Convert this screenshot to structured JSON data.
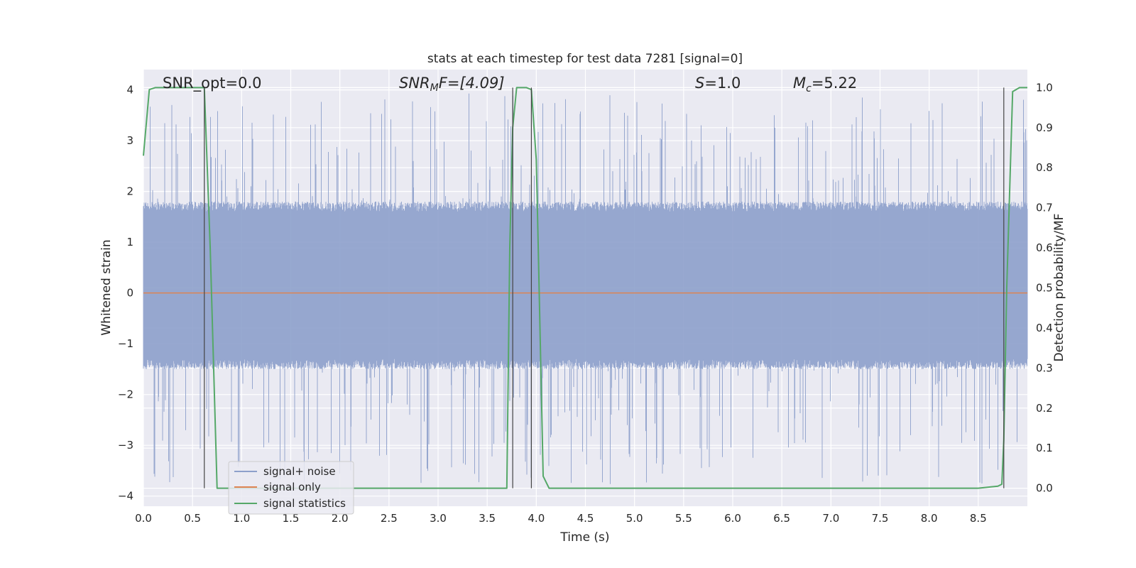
{
  "chart_data": {
    "type": "line",
    "title": "stats at each timestep for test data 7281 [signal=0]",
    "xlabel": "Time (s)",
    "ylabel": "Whitened strain",
    "ylabel_right": "Detection probability/MF",
    "xlim": [
      0.0,
      9.0
    ],
    "ylim": [
      -4.2,
      4.4
    ],
    "ylim_right": [
      -0.045,
      1.045
    ],
    "x_ticks": [
      0.0,
      0.5,
      1.0,
      1.5,
      2.0,
      2.5,
      3.0,
      3.5,
      4.0,
      4.5,
      5.0,
      5.5,
      6.0,
      6.5,
      7.0,
      7.5,
      8.0,
      8.5
    ],
    "x_tick_labels": [
      "0.0",
      "0.5",
      "1.0",
      "1.5",
      "2.0",
      "2.5",
      "3.0",
      "3.5",
      "4.0",
      "4.5",
      "5.0",
      "5.5",
      "6.0",
      "6.5",
      "7.0",
      "7.5",
      "8.0",
      "8.5"
    ],
    "y_ticks": [
      4,
      3,
      2,
      1,
      0,
      -1,
      -2,
      -3,
      -4
    ],
    "y_tick_labels": [
      "4",
      "3",
      "2",
      "1",
      "0",
      "−1",
      "−2",
      "−3",
      "−4"
    ],
    "y_right_ticks": [
      1.0,
      0.9,
      0.8,
      0.7,
      0.6,
      0.5,
      0.4,
      0.3,
      0.2,
      0.1,
      0.0
    ],
    "y_right_tick_labels": [
      "1.0",
      "0.9",
      "0.8",
      "0.7",
      "0.6",
      "0.5",
      "0.4",
      "0.3",
      "0.2",
      "0.1",
      "0.0"
    ],
    "grid": true,
    "legend_position": "lower-left",
    "annotations": {
      "snr_opt": "SNR_opt=0.0",
      "snr_mf_label": "SNR",
      "snr_mf_sub": "M",
      "snr_mf_rest": "F=[4.09]",
      "s_label": "S",
      "s_value": "=1.0",
      "mc_label": "M",
      "mc_sub": "c",
      "mc_value": "=5.22"
    },
    "colors": {
      "background": "#eaeaf2",
      "grid": "#ffffff",
      "noise": "#8da0cb",
      "signal_only": "#dd8452",
      "statistics": "#55a868",
      "marker_lines": "#444444"
    },
    "series": [
      {
        "name": "signal+ noise",
        "axis": "left",
        "style": "noise-band",
        "duration": 9.0,
        "dense_range": [
          -1.5,
          1.8
        ],
        "peak_range": [
          -3.8,
          3.95
        ]
      },
      {
        "name": "signal only",
        "axis": "left",
        "x": [
          0.0,
          9.0
        ],
        "y": [
          0.0,
          0.0
        ]
      },
      {
        "name": "signal statistics",
        "axis": "right",
        "x": [
          0.0,
          0.06,
          0.12,
          0.3,
          0.45,
          0.6,
          0.62,
          0.68,
          0.75,
          1.0,
          2.0,
          3.0,
          3.5,
          3.7,
          3.73,
          3.76,
          3.8,
          3.9,
          3.95,
          4.0,
          4.02,
          4.07,
          4.13,
          4.2,
          5.0,
          6.0,
          7.0,
          8.0,
          8.5,
          8.7,
          8.74,
          8.76,
          8.79,
          8.85,
          8.92,
          9.0
        ],
        "y": [
          0.83,
          0.995,
          1.0,
          1.0,
          1.0,
          1.0,
          1.0,
          0.6,
          0.0,
          0.0,
          0.0,
          0.0,
          0.0,
          0.0,
          0.6,
          0.9,
          1.0,
          1.0,
          0.995,
          0.82,
          0.6,
          0.03,
          0.0,
          0.0,
          0.0,
          0.0,
          0.0,
          0.0,
          0.0,
          0.005,
          0.01,
          0.12,
          0.5,
          0.99,
          1.0,
          1.0
        ]
      }
    ],
    "marker_lines_x": [
      0.62,
      3.76,
      3.95,
      8.76
    ],
    "marker_lines_range": [
      0.0,
      1.0
    ]
  }
}
